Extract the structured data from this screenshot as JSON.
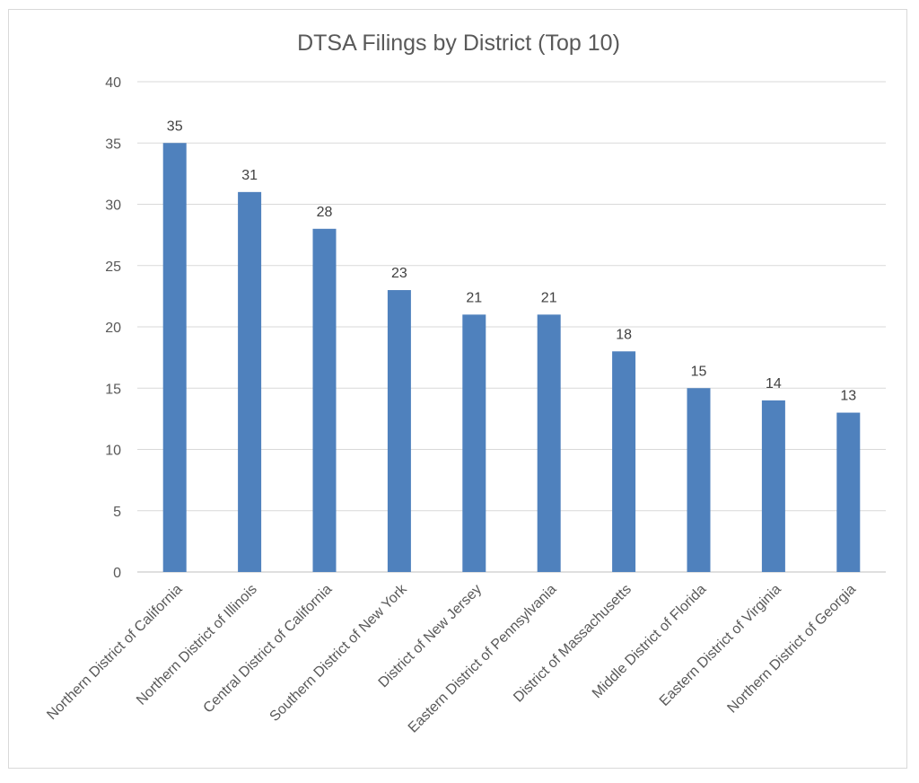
{
  "chart_data": {
    "type": "bar",
    "title": "DTSA Filings by District (Top 10)",
    "categories": [
      "Northern District of California",
      "Northern District of Illinois",
      "Central District of California",
      "Southern District of New York",
      "District of New Jersey",
      "Eastern District of Pennsylvania",
      "District of Massachusetts",
      "Middle District of Florida",
      "Eastern District of Virginia",
      "Northern District of Georgia"
    ],
    "values": [
      35,
      31,
      28,
      23,
      21,
      21,
      18,
      15,
      14,
      13
    ],
    "ylim": [
      0,
      40
    ],
    "yticks": [
      0,
      5,
      10,
      15,
      20,
      25,
      30,
      35,
      40
    ],
    "grid": true,
    "legend": "none",
    "bar_color": "#4f81bd",
    "grid_color": "#d9d9d9"
  }
}
